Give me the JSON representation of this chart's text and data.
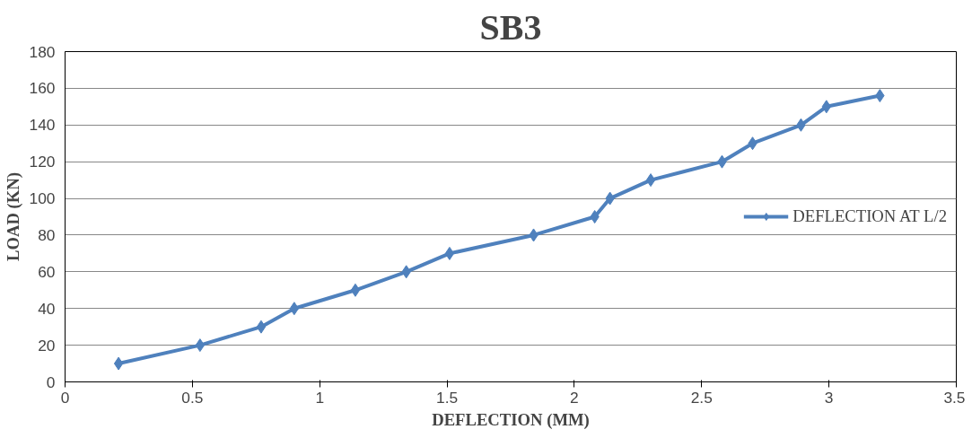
{
  "chart_data": {
    "type": "line",
    "title": "SB3",
    "xlabel": "DEFLECTION (MM)",
    "ylabel": "LOAD (KN)",
    "x": [
      0.21,
      0.53,
      0.77,
      0.9,
      1.14,
      1.34,
      1.51,
      1.84,
      2.08,
      2.14,
      2.3,
      2.58,
      2.7,
      2.89,
      2.99,
      3.2
    ],
    "series": [
      {
        "name": "DEFLECTION AT L/2",
        "color": "#4f81bd",
        "values": [
          10,
          20,
          30,
          40,
          50,
          60,
          70,
          80,
          90,
          100,
          110,
          120,
          130,
          140,
          150,
          156
        ]
      }
    ],
    "xlim": [
      0,
      3.5
    ],
    "xticks": [
      0,
      0.5,
      1,
      1.5,
      2,
      2.5,
      3,
      3.5
    ],
    "ylim": [
      0,
      180
    ],
    "yticks": [
      0,
      20,
      40,
      60,
      80,
      100,
      120,
      140,
      160,
      180
    ],
    "grid": "y",
    "legend": "right",
    "marker": "diamond",
    "line_style": "solid"
  }
}
